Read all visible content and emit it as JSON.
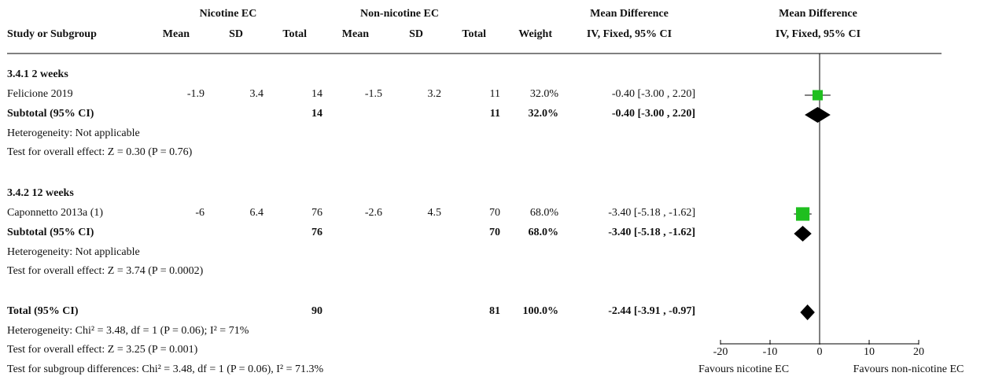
{
  "header": {
    "group1": "Nicotine EC",
    "group2": "Non-nicotine EC",
    "md_title": "Mean Difference",
    "plot_title": "Mean Difference",
    "col_study": "Study or Subgroup",
    "col_mean1": "Mean",
    "col_sd1": "SD",
    "col_total1": "Total",
    "col_mean2": "Mean",
    "col_sd2": "SD",
    "col_total2": "Total",
    "col_weight": "Weight",
    "col_ci": "IV, Fixed, 95% CI",
    "plot_subtitle": "IV, Fixed, 95% CI"
  },
  "subgroups": [
    {
      "title": "3.4.1 2 weeks",
      "study": {
        "name": "Felicione 2019",
        "mean1": "-1.9",
        "sd1": "3.4",
        "total1": "14",
        "mean2": "-1.5",
        "sd2": "3.2",
        "total2": "11",
        "weight": "32.0%",
        "ci": "-0.40 [-3.00 , 2.20]"
      },
      "subtotal": {
        "label": "Subtotal (95% CI)",
        "total1": "14",
        "total2": "11",
        "weight": "32.0%",
        "ci": "-0.40 [-3.00 , 2.20]"
      },
      "heterogeneity": "Heterogeneity: Not applicable",
      "overall": "Test for overall effect: Z = 0.30 (P = 0.76)"
    },
    {
      "title": "3.4.2 12 weeks",
      "study": {
        "name": "Caponnetto 2013a (1)",
        "mean1": "-6",
        "sd1": "6.4",
        "total1": "76",
        "mean2": "-2.6",
        "sd2": "4.5",
        "total2": "70",
        "weight": "68.0%",
        "ci": "-3.40 [-5.18 , -1.62]"
      },
      "subtotal": {
        "label": "Subtotal (95% CI)",
        "total1": "76",
        "total2": "70",
        "weight": "68.0%",
        "ci": "-3.40 [-5.18 , -1.62]"
      },
      "heterogeneity": "Heterogeneity: Not applicable",
      "overall": "Test for overall effect: Z = 3.74 (P = 0.0002)"
    }
  ],
  "total": {
    "label": "Total (95% CI)",
    "total1": "90",
    "total2": "81",
    "weight": "100.0%",
    "ci": "-2.44 [-3.91 , -0.97]",
    "heterogeneity": "Heterogeneity: Chi² = 3.48, df = 1 (P = 0.06); I² = 71%",
    "overall": "Test for overall effect: Z = 3.25 (P = 0.001)",
    "subgroup_diff": "Test for subgroup differences: Chi² = 3.48, df = 1 (P = 0.06), I² = 71.3%"
  },
  "plot": {
    "favours_left": "Favours nicotine EC",
    "favours_right": "Favours non-nicotine EC"
  },
  "colors": {
    "study_marker": "#1fbf1f",
    "diamond": "#000000",
    "line": "#000000"
  },
  "chart_data": {
    "type": "forest",
    "x_range": [
      -20,
      20
    ],
    "x_ticks": [
      "-20",
      "-10",
      "0",
      "10",
      "20"
    ],
    "reference_line": 0,
    "studies": [
      {
        "name": "Felicione 2019",
        "estimate": -0.4,
        "ci_low": -3.0,
        "ci_high": 2.2,
        "weight": 32.0,
        "kind": "study"
      },
      {
        "name": "Subtotal (95% CI)",
        "estimate": -0.4,
        "ci_low": -3.0,
        "ci_high": 2.2,
        "weight": 32.0,
        "kind": "summary"
      },
      {
        "name": "Caponnetto 2013a (1)",
        "estimate": -3.4,
        "ci_low": -5.18,
        "ci_high": -1.62,
        "weight": 68.0,
        "kind": "study"
      },
      {
        "name": "Subtotal (95% CI)",
        "estimate": -3.4,
        "ci_low": -5.18,
        "ci_high": -1.62,
        "weight": 68.0,
        "kind": "summary"
      },
      {
        "name": "Total (95% CI)",
        "estimate": -2.44,
        "ci_low": -3.91,
        "ci_high": -0.97,
        "weight": 100.0,
        "kind": "summary"
      }
    ]
  }
}
